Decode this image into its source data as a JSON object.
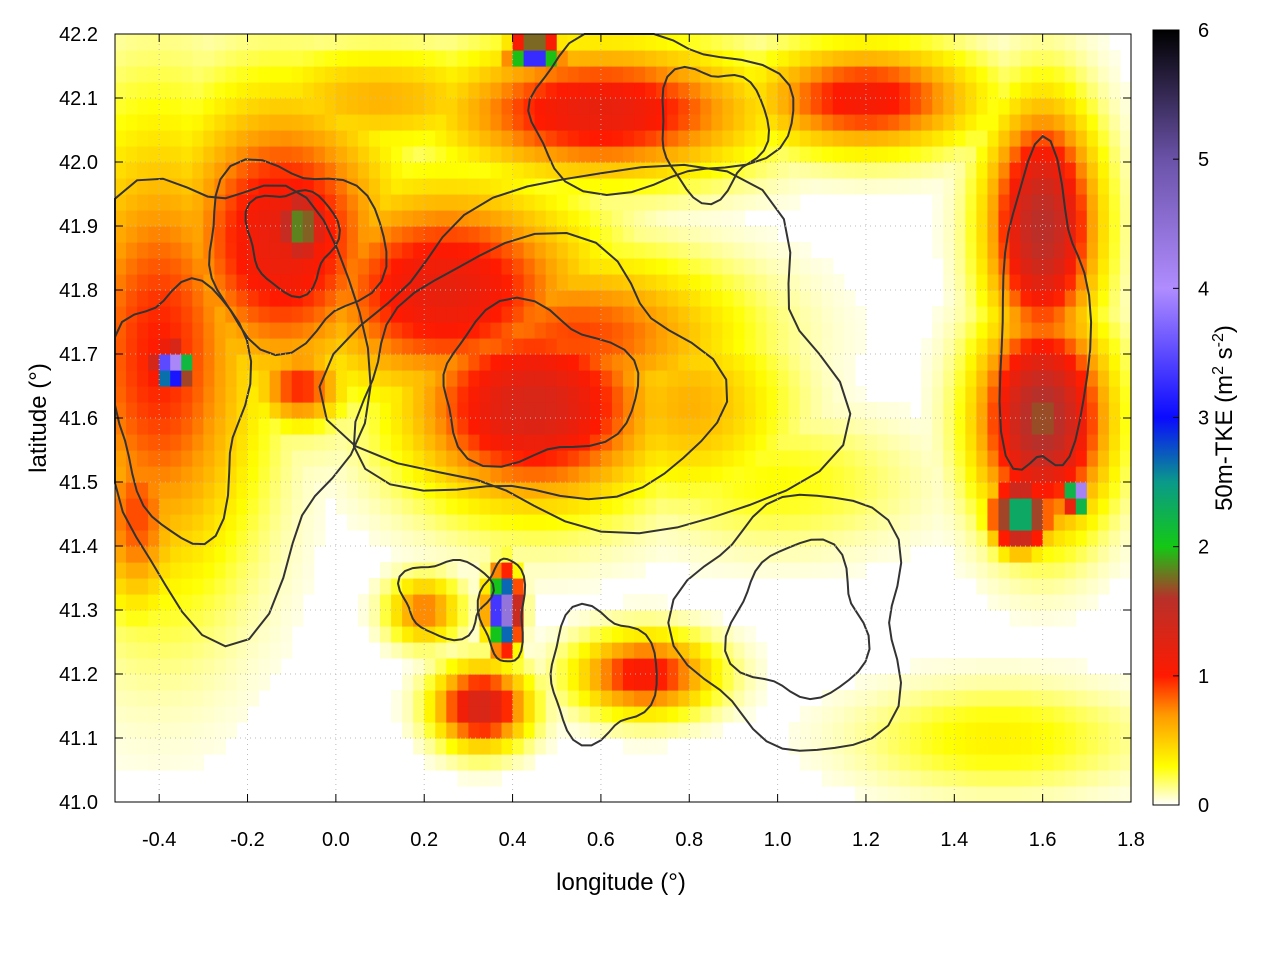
{
  "chart_data": {
    "type": "heatmap",
    "title": "",
    "xlabel": "longitude (°)",
    "ylabel": "latitude (°)",
    "colorbar_label_parts": [
      "50m-TKE (m",
      "2",
      " s",
      "-2",
      ")"
    ],
    "xlim": [
      -0.5,
      1.8
    ],
    "ylim": [
      41.0,
      42.2
    ],
    "x_ticks": [
      -0.4,
      -0.2,
      0.0,
      0.2,
      0.4,
      0.6,
      0.8,
      1.0,
      1.2,
      1.4,
      1.6,
      1.8
    ],
    "x_tick_labels": [
      "-0.4",
      "-0.2",
      "0.0",
      "0.2",
      "0.4",
      "0.6",
      "0.8",
      "1.0",
      "1.2",
      "1.4",
      "1.6",
      "1.8"
    ],
    "y_ticks": [
      41.0,
      41.1,
      41.2,
      41.3,
      41.4,
      41.5,
      41.6,
      41.7,
      41.8,
      41.9,
      42.0,
      42.1,
      42.2
    ],
    "y_tick_labels": [
      "41.0",
      "41.1",
      "41.2",
      "41.3",
      "41.4",
      "41.5",
      "41.6",
      "41.7",
      "41.8",
      "41.9",
      "42.0",
      "42.1",
      "42.2"
    ],
    "colorbar_range": [
      0,
      6
    ],
    "colorbar_ticks": [
      0,
      1,
      2,
      3,
      4,
      5,
      6
    ],
    "colorbar_tick_labels": [
      "0",
      "1",
      "2",
      "3",
      "4",
      "5",
      "6"
    ],
    "colormap_stops": [
      {
        "value": 0.0,
        "color": "#ffffff"
      },
      {
        "value": 0.3,
        "color": "#ffff00"
      },
      {
        "value": 0.7,
        "color": "#ff9900"
      },
      {
        "value": 1.0,
        "color": "#ff1a00"
      },
      {
        "value": 1.6,
        "color": "#b8302a"
      },
      {
        "value": 2.0,
        "color": "#14c814"
      },
      {
        "value": 2.5,
        "color": "#0a9a8a"
      },
      {
        "value": 3.0,
        "color": "#0a0aff"
      },
      {
        "value": 4.0,
        "color": "#b08cff"
      },
      {
        "value": 5.0,
        "color": "#6a52a8"
      },
      {
        "value": 6.0,
        "color": "#000000"
      }
    ],
    "contour_color": "#333333",
    "grid": true,
    "tke_features": [
      {
        "lon": -0.08,
        "lat": 41.9,
        "value": 1.9,
        "rlon": 0.07,
        "rlat": 0.07
      },
      {
        "lon": -0.12,
        "lat": 41.88,
        "value": 1.2,
        "rlon": 0.25,
        "rlat": 0.22
      },
      {
        "lon": 0.25,
        "lat": 41.8,
        "value": 1.2,
        "rlon": 0.32,
        "rlat": 0.16
      },
      {
        "lon": 0.45,
        "lat": 41.62,
        "value": 1.35,
        "rlon": 0.28,
        "rlat": 0.15
      },
      {
        "lon": 0.55,
        "lat": 41.73,
        "value": 0.9,
        "rlon": 0.35,
        "rlat": 0.12
      },
      {
        "lon": 0.8,
        "lat": 41.62,
        "value": 0.6,
        "rlon": 0.22,
        "rlat": 0.14
      },
      {
        "lon": -0.4,
        "lat": 41.7,
        "value": 1.0,
        "rlon": 0.22,
        "rlat": 0.35
      },
      {
        "lon": -0.37,
        "lat": 41.68,
        "value": 4.5,
        "rlon": 0.04,
        "rlat": 0.03
      },
      {
        "lon": -0.08,
        "lat": 41.65,
        "value": 1.0,
        "rlon": 0.1,
        "rlat": 0.06
      },
      {
        "lon": -0.45,
        "lat": 41.45,
        "value": 0.9,
        "rlon": 0.1,
        "rlat": 0.15
      },
      {
        "lon": 0.1,
        "lat": 42.1,
        "value": 0.6,
        "rlon": 0.3,
        "rlat": 0.08
      },
      {
        "lon": 0.6,
        "lat": 42.08,
        "value": 1.2,
        "rlon": 0.35,
        "rlat": 0.1
      },
      {
        "lon": 0.45,
        "lat": 42.17,
        "value": 4.0,
        "rlon": 0.05,
        "rlat": 0.02
      },
      {
        "lon": 1.2,
        "lat": 42.1,
        "value": 1.1,
        "rlon": 0.25,
        "rlat": 0.08
      },
      {
        "lon": 1.6,
        "lat": 41.9,
        "value": 1.6,
        "rlon": 0.12,
        "rlat": 0.18
      },
      {
        "lon": 1.6,
        "lat": 41.6,
        "value": 1.7,
        "rlon": 0.14,
        "rlat": 0.16
      },
      {
        "lon": 1.68,
        "lat": 41.48,
        "value": 5.5,
        "rlon": 0.02,
        "rlat": 0.02
      },
      {
        "lon": 1.55,
        "lat": 41.45,
        "value": 2.6,
        "rlon": 0.06,
        "rlat": 0.05
      },
      {
        "lon": 0.38,
        "lat": 41.3,
        "value": 5.0,
        "rlon": 0.03,
        "rlat": 0.05
      },
      {
        "lon": 0.33,
        "lat": 41.15,
        "value": 1.4,
        "rlon": 0.1,
        "rlat": 0.06
      },
      {
        "lon": 0.7,
        "lat": 41.2,
        "value": 1.1,
        "rlon": 0.15,
        "rlat": 0.06
      },
      {
        "lon": 0.2,
        "lat": 41.3,
        "value": 0.8,
        "rlon": 0.08,
        "rlat": 0.05
      },
      {
        "lon": 1.0,
        "lat": 41.5,
        "value": 0.3,
        "rlon": 0.3,
        "rlat": 0.1
      },
      {
        "lon": 1.5,
        "lat": 41.1,
        "value": 0.35,
        "rlon": 0.3,
        "rlat": 0.08
      }
    ]
  }
}
